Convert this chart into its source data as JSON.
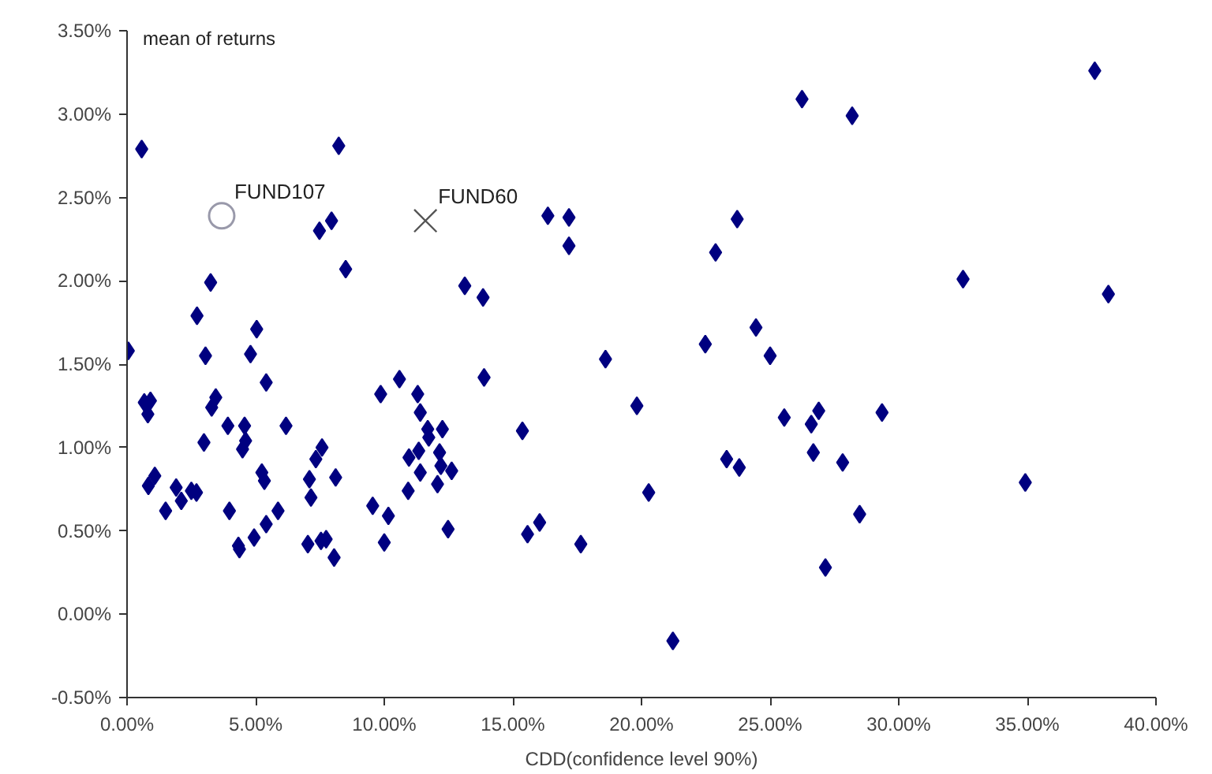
{
  "chart_data": {
    "type": "scatter",
    "ylabel": "mean of returns",
    "xlabel": "CDD(confidence level 90%)",
    "xlim": [
      0,
      40
    ],
    "ylim": [
      -0.5,
      3.5
    ],
    "xticks": [
      {
        "value": 0,
        "label": "0.00%"
      },
      {
        "value": 5,
        "label": "5.00%"
      },
      {
        "value": 10,
        "label": "10.00%"
      },
      {
        "value": 15,
        "label": "15.00%"
      },
      {
        "value": 20,
        "label": "20.00%"
      },
      {
        "value": 25,
        "label": "25.00%"
      },
      {
        "value": 30,
        "label": "30.00%"
      },
      {
        "value": 35,
        "label": "35.00%"
      },
      {
        "value": 40,
        "label": "40.00%"
      }
    ],
    "yticks": [
      {
        "value": -0.5,
        "label": "-0.50%"
      },
      {
        "value": 0,
        "label": "0.00%"
      },
      {
        "value": 0.5,
        "label": "0.50%"
      },
      {
        "value": 1,
        "label": "1.00%"
      },
      {
        "value": 1.5,
        "label": "1.50%"
      },
      {
        "value": 2,
        "label": "2.00%"
      },
      {
        "value": 2.5,
        "label": "2.50%"
      },
      {
        "value": 3,
        "label": "3.00%"
      },
      {
        "value": 3.5,
        "label": "3.50%"
      }
    ],
    "grid": false,
    "series": [
      {
        "color": "#000080",
        "marker": "diamond",
        "x": [
          0.05,
          0.57,
          8.23,
          7.48,
          7.95,
          8.5,
          3.25,
          13.13,
          13.84,
          2.72,
          5.04,
          3.05,
          4.8,
          5.41,
          13.88,
          10.59,
          9.86,
          11.3,
          11.4,
          0.67,
          0.91,
          0.81,
          3.45,
          3.29,
          3.92,
          4.57,
          6.18,
          4.61,
          4.49,
          2.99,
          7.58,
          7.34,
          11.69,
          12.26,
          11.73,
          11.34,
          10.96,
          12.15,
          12.2,
          12.62,
          11.4,
          12.07,
          10.93,
          9.55,
          10.16,
          10.0,
          12.48,
          1.08,
          0.83,
          1.91,
          2.11,
          2.5,
          2.7,
          1.5,
          3.98,
          5.24,
          5.34,
          5.87,
          5.41,
          4.94,
          4.33,
          4.37,
          7.09,
          7.15,
          8.11,
          7.03,
          7.54,
          7.74,
          8.05,
          16.36,
          17.18,
          17.18,
          15.37,
          18.6,
          19.82,
          15.57,
          16.04,
          17.64,
          20.28,
          21.22,
          22.48,
          22.88,
          23.72,
          24.45,
          25.0,
          25.55,
          23.31,
          23.8,
          26.6,
          26.89,
          26.68,
          27.82,
          28.48,
          27.15,
          26.24,
          28.19,
          37.62,
          32.5,
          38.15,
          29.35,
          34.92
        ],
        "values": [
          1.58,
          2.79,
          2.81,
          2.3,
          2.36,
          2.07,
          1.99,
          1.97,
          1.9,
          1.79,
          1.71,
          1.55,
          1.56,
          1.39,
          1.42,
          1.41,
          1.32,
          1.32,
          1.21,
          1.27,
          1.28,
          1.2,
          1.3,
          1.24,
          1.13,
          1.13,
          1.13,
          1.04,
          0.99,
          1.03,
          1.0,
          0.93,
          1.11,
          1.11,
          1.06,
          0.98,
          0.94,
          0.97,
          0.89,
          0.86,
          0.85,
          0.78,
          0.74,
          0.65,
          0.59,
          0.43,
          0.51,
          0.83,
          0.77,
          0.76,
          0.68,
          0.74,
          0.73,
          0.62,
          0.62,
          0.85,
          0.8,
          0.62,
          0.54,
          0.46,
          0.41,
          0.39,
          0.81,
          0.7,
          0.82,
          0.42,
          0.44,
          0.45,
          0.34,
          2.39,
          2.38,
          2.21,
          1.1,
          1.53,
          1.25,
          0.48,
          0.55,
          0.42,
          0.73,
          -0.16,
          1.62,
          2.17,
          2.37,
          1.72,
          1.55,
          1.18,
          0.93,
          0.88,
          1.14,
          1.22,
          0.97,
          0.91,
          0.6,
          0.28,
          3.09,
          2.99,
          3.26,
          2.01,
          1.92,
          1.21,
          0.79
        ]
      },
      {
        "name": "FUND107",
        "color": "#9999aa",
        "marker": "circle",
        "x": [
          3.68
        ],
        "values": [
          2.39
        ]
      },
      {
        "name": "FUND60",
        "color": "#555555",
        "marker": "cross",
        "x": [
          11.6
        ],
        "values": [
          2.36
        ]
      }
    ]
  }
}
